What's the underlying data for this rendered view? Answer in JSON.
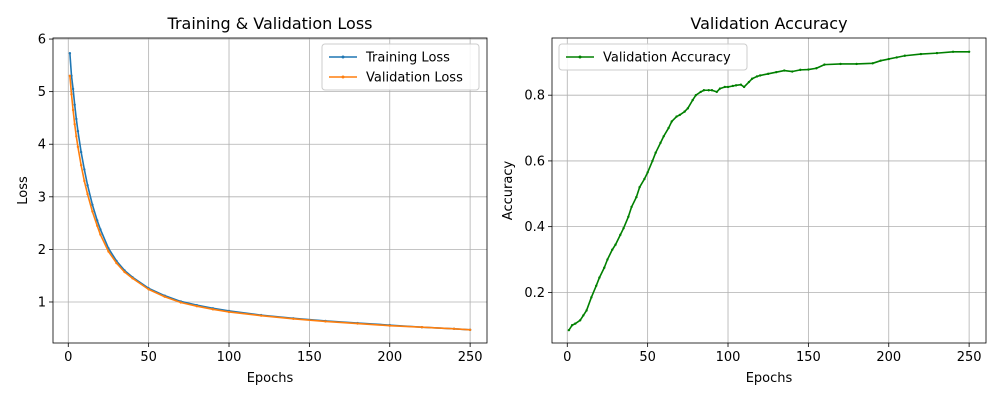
{
  "chart_data": [
    {
      "type": "line",
      "title": "Training & Validation Loss",
      "xlabel": "Epochs",
      "ylabel": "Loss",
      "xlim": [
        -9.5,
        260.5
      ],
      "ylim": [
        0.22,
        6.02
      ],
      "xticks": [
        0,
        50,
        100,
        150,
        200,
        250
      ],
      "yticks": [
        1,
        2,
        3,
        4,
        5,
        6
      ],
      "grid": true,
      "legend": "upper-right",
      "series": [
        {
          "name": "Training Loss",
          "color": "#1f77b4",
          "x": [
            1,
            2,
            3,
            4,
            5,
            6,
            8,
            10,
            12,
            15,
            18,
            20,
            25,
            30,
            35,
            40,
            50,
            60,
            70,
            80,
            90,
            100,
            120,
            140,
            160,
            180,
            200,
            220,
            240,
            250
          ],
          "values": [
            5.73,
            5.3,
            5.05,
            4.75,
            4.48,
            4.25,
            3.85,
            3.52,
            3.22,
            2.85,
            2.55,
            2.38,
            2.02,
            1.78,
            1.6,
            1.47,
            1.26,
            1.12,
            1.01,
            0.94,
            0.88,
            0.83,
            0.75,
            0.69,
            0.64,
            0.6,
            0.56,
            0.52,
            0.49,
            0.47
          ]
        },
        {
          "name": "Validation Loss",
          "color": "#ff7f0e",
          "x": [
            1,
            2,
            3,
            4,
            5,
            6,
            8,
            10,
            12,
            15,
            18,
            20,
            25,
            30,
            35,
            40,
            50,
            60,
            70,
            80,
            90,
            100,
            120,
            140,
            160,
            180,
            200,
            220,
            240,
            250
          ],
          "values": [
            5.3,
            4.95,
            4.65,
            4.38,
            4.15,
            3.95,
            3.6,
            3.3,
            3.05,
            2.72,
            2.45,
            2.28,
            1.96,
            1.74,
            1.57,
            1.45,
            1.24,
            1.1,
            0.99,
            0.92,
            0.86,
            0.81,
            0.74,
            0.68,
            0.63,
            0.59,
            0.55,
            0.52,
            0.49,
            0.47
          ]
        }
      ]
    },
    {
      "type": "line",
      "title": "Validation Accuracy",
      "xlabel": "Epochs",
      "ylabel": "Accuracy",
      "xlim": [
        -9.5,
        260.5
      ],
      "ylim": [
        0.046,
        0.974
      ],
      "xticks": [
        0,
        50,
        100,
        150,
        200,
        250
      ],
      "yticks": [
        0.2,
        0.4,
        0.6,
        0.8
      ],
      "grid": true,
      "legend": "upper-left",
      "series": [
        {
          "name": "Validation Accuracy",
          "color": "#008000",
          "x": [
            1,
            3,
            5,
            8,
            10,
            12,
            15,
            18,
            20,
            23,
            25,
            28,
            30,
            33,
            35,
            38,
            40,
            43,
            45,
            48,
            50,
            53,
            55,
            58,
            60,
            63,
            65,
            68,
            70,
            73,
            75,
            78,
            80,
            83,
            85,
            88,
            90,
            93,
            95,
            98,
            100,
            103,
            105,
            108,
            110,
            113,
            115,
            118,
            120,
            125,
            130,
            135,
            140,
            145,
            150,
            155,
            160,
            170,
            180,
            190,
            195,
            200,
            205,
            210,
            220,
            230,
            240,
            250
          ],
          "values": [
            0.085,
            0.1,
            0.105,
            0.115,
            0.13,
            0.145,
            0.185,
            0.22,
            0.245,
            0.275,
            0.3,
            0.33,
            0.345,
            0.375,
            0.395,
            0.43,
            0.46,
            0.49,
            0.52,
            0.545,
            0.565,
            0.6,
            0.625,
            0.655,
            0.675,
            0.7,
            0.72,
            0.735,
            0.74,
            0.75,
            0.76,
            0.785,
            0.8,
            0.81,
            0.815,
            0.815,
            0.815,
            0.81,
            0.82,
            0.825,
            0.825,
            0.828,
            0.83,
            0.832,
            0.825,
            0.84,
            0.85,
            0.857,
            0.86,
            0.865,
            0.87,
            0.875,
            0.872,
            0.877,
            0.878,
            0.882,
            0.893,
            0.895,
            0.895,
            0.897,
            0.905,
            0.91,
            0.915,
            0.92,
            0.925,
            0.928,
            0.932,
            0.932
          ]
        }
      ]
    }
  ]
}
